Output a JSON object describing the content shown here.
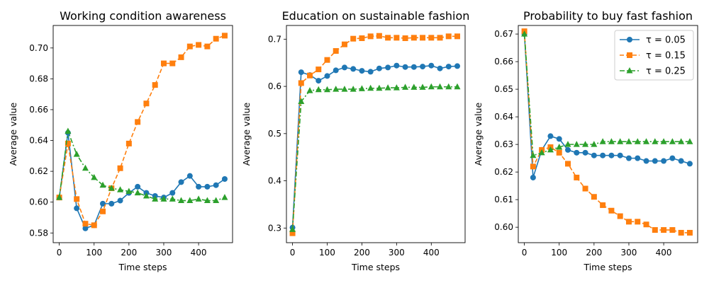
{
  "chart_data": [
    {
      "type": "line",
      "title": "Working condition awareness",
      "xlabel": "Time steps",
      "ylabel": "Average value",
      "xlim": [
        -17.5,
        497.5
      ],
      "ylim": [
        0.5737,
        0.7146
      ],
      "xticks": [
        0,
        100,
        200,
        300,
        400
      ],
      "yticks": [
        0.58,
        0.6,
        0.62,
        0.64,
        0.66,
        0.68,
        0.7
      ],
      "ytick_labels": [
        "0.58",
        "0.60",
        "0.62",
        "0.64",
        "0.66",
        "0.68",
        "0.70"
      ],
      "x": [
        0,
        25,
        50,
        75,
        100,
        125,
        150,
        175,
        200,
        225,
        250,
        275,
        300,
        325,
        350,
        375,
        400,
        425,
        450,
        475
      ],
      "series": [
        {
          "name": "τ = 0.05",
          "values": [
            0.603,
            0.645,
            0.596,
            0.583,
            0.585,
            0.599,
            0.599,
            0.601,
            0.606,
            0.61,
            0.606,
            0.604,
            0.603,
            0.606,
            0.613,
            0.617,
            0.61,
            0.61,
            0.611,
            0.615
          ]
        },
        {
          "name": "τ = 0.15",
          "values": [
            0.603,
            0.638,
            0.602,
            0.586,
            0.585,
            0.594,
            0.609,
            0.622,
            0.638,
            0.652,
            0.664,
            0.676,
            0.69,
            0.69,
            0.694,
            0.701,
            0.702,
            0.701,
            0.706,
            0.708
          ]
        },
        {
          "name": "τ = 0.25",
          "values": [
            0.603,
            0.646,
            0.631,
            0.622,
            0.616,
            0.611,
            0.609,
            0.608,
            0.607,
            0.606,
            0.604,
            0.602,
            0.602,
            0.602,
            0.601,
            0.601,
            0.602,
            0.601,
            0.601,
            0.603
          ]
        }
      ]
    },
    {
      "type": "line",
      "title": "Education on sustainable fashion",
      "xlabel": "Time steps",
      "ylabel": "Average value",
      "xlim": [
        -17.5,
        497.5
      ],
      "ylim": [
        0.269,
        0.729
      ],
      "xticks": [
        0,
        100,
        200,
        300,
        400
      ],
      "yticks": [
        0.3,
        0.4,
        0.5,
        0.6,
        0.7
      ],
      "ytick_labels": [
        "0.3",
        "0.4",
        "0.5",
        "0.6",
        "0.7"
      ],
      "x": [
        0,
        25,
        50,
        75,
        100,
        125,
        150,
        175,
        200,
        225,
        250,
        275,
        300,
        325,
        350,
        375,
        400,
        425,
        450,
        475
      ],
      "series": [
        {
          "name": "τ = 0.05",
          "values": [
            0.301,
            0.63,
            0.624,
            0.612,
            0.622,
            0.634,
            0.64,
            0.637,
            0.633,
            0.631,
            0.638,
            0.64,
            0.644,
            0.641,
            0.641,
            0.642,
            0.644,
            0.638,
            0.642,
            0.643
          ]
        },
        {
          "name": "τ = 0.15",
          "values": [
            0.289,
            0.607,
            0.623,
            0.636,
            0.656,
            0.675,
            0.689,
            0.701,
            0.702,
            0.706,
            0.707,
            0.703,
            0.703,
            0.702,
            0.703,
            0.703,
            0.703,
            0.703,
            0.706,
            0.706
          ]
        },
        {
          "name": "τ = 0.25",
          "values": [
            0.297,
            0.568,
            0.591,
            0.593,
            0.593,
            0.594,
            0.594,
            0.594,
            0.595,
            0.596,
            0.596,
            0.597,
            0.597,
            0.598,
            0.598,
            0.598,
            0.599,
            0.599,
            0.599,
            0.599
          ]
        }
      ]
    },
    {
      "type": "line",
      "title": "Probability to buy fast fashion",
      "xlabel": "Time steps",
      "ylabel": "Average value",
      "xlim": [
        -17.5,
        497.5
      ],
      "ylim": [
        0.5944,
        0.6731
      ],
      "xticks": [
        0,
        100,
        200,
        300,
        400
      ],
      "yticks": [
        0.6,
        0.61,
        0.62,
        0.63,
        0.64,
        0.65,
        0.66,
        0.67
      ],
      "ytick_labels": [
        "0.60",
        "0.61",
        "0.62",
        "0.63",
        "0.64",
        "0.65",
        "0.66",
        "0.67"
      ],
      "x": [
        0,
        25,
        50,
        75,
        100,
        125,
        150,
        175,
        200,
        225,
        250,
        275,
        300,
        325,
        350,
        375,
        400,
        425,
        450,
        475
      ],
      "legend": "top-right",
      "series": [
        {
          "name": "τ = 0.05",
          "values": [
            0.67,
            0.618,
            0.628,
            0.633,
            0.632,
            0.628,
            0.627,
            0.627,
            0.626,
            0.626,
            0.626,
            0.626,
            0.625,
            0.625,
            0.624,
            0.624,
            0.624,
            0.625,
            0.624,
            0.623
          ]
        },
        {
          "name": "τ = 0.15",
          "values": [
            0.671,
            0.622,
            0.628,
            0.629,
            0.627,
            0.623,
            0.618,
            0.614,
            0.611,
            0.608,
            0.606,
            0.604,
            0.602,
            0.602,
            0.601,
            0.599,
            0.599,
            0.599,
            0.598,
            0.598
          ]
        },
        {
          "name": "τ = 0.25",
          "values": [
            0.67,
            0.626,
            0.627,
            0.628,
            0.629,
            0.63,
            0.63,
            0.63,
            0.63,
            0.631,
            0.631,
            0.631,
            0.631,
            0.631,
            0.631,
            0.631,
            0.631,
            0.631,
            0.631,
            0.631
          ]
        }
      ]
    }
  ],
  "series_styles": [
    {
      "color": "#1f77b4",
      "marker": "circle",
      "dash": "solid"
    },
    {
      "color": "#ff7f0e",
      "marker": "square",
      "dash": "dashed"
    },
    {
      "color": "#2ca02c",
      "marker": "triangle",
      "dash": "dashdot"
    }
  ]
}
